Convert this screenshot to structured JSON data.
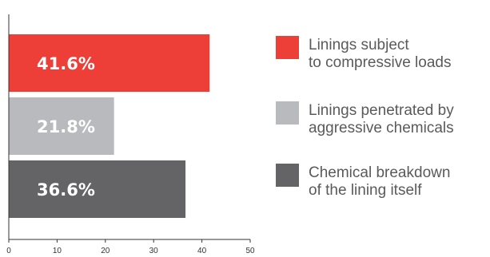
{
  "chart_data": {
    "type": "bar",
    "orientation": "horizontal",
    "title": "",
    "xlabel": "",
    "ylabel": "",
    "xlim": [
      0,
      50
    ],
    "xticks": [
      0,
      10,
      20,
      30,
      40,
      50
    ],
    "grid": false,
    "legend_placement": "right",
    "series": [
      {
        "name_lines": [
          "Linings subject",
          "to compressive loads"
        ],
        "value": 41.6,
        "label": "41.6%",
        "color": "#ee3e38"
      },
      {
        "name_lines": [
          "Linings penetrated by",
          "aggressive chemicals"
        ],
        "value": 21.8,
        "label": "21.8%",
        "color": "#b9babd"
      },
      {
        "name_lines": [
          "Chemical breakdown",
          "of the lining itself"
        ],
        "value": 36.6,
        "label": "36.6%",
        "color": "#646466"
      }
    ]
  }
}
